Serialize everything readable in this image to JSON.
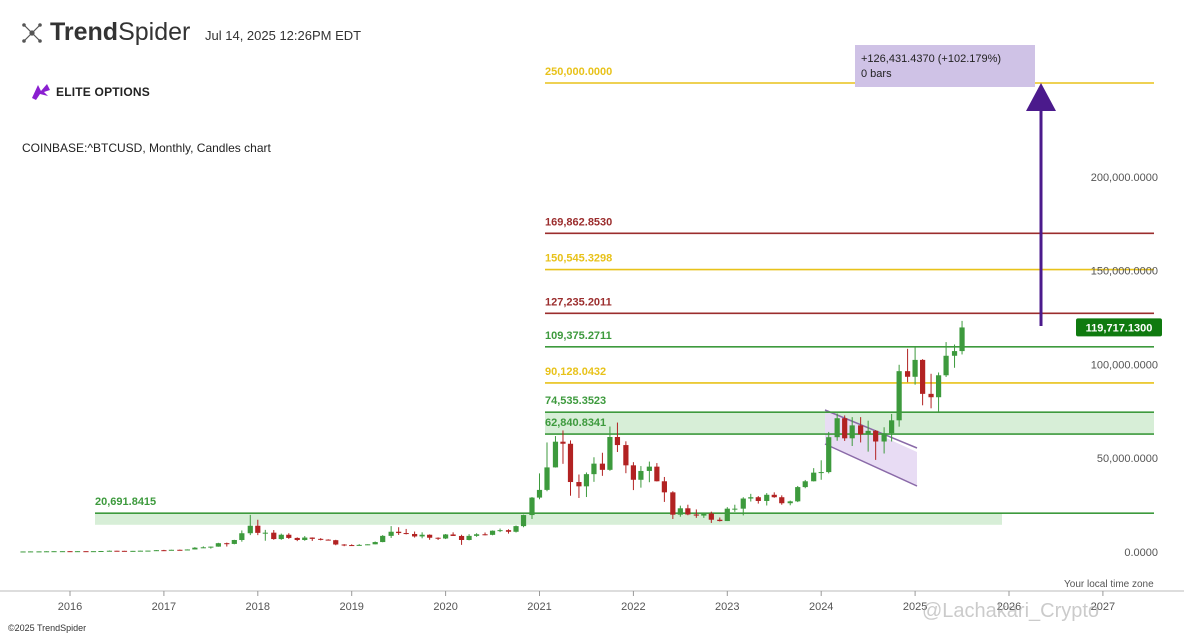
{
  "header": {
    "brand_bold": "Trend",
    "brand_light": "Spider",
    "brand_icon": "spider-dots-icon",
    "timestamp": "Jul 14, 2025 12:26PM EDT",
    "partner": "ELITE OPTIONS",
    "partner_icon": "phoenix-logo-icon",
    "symbol": "COINBASE:^BTCUSD, Monthly, Candles chart"
  },
  "footer": {
    "copyright": "©2025 TrendSpider",
    "timezone": "Your local time zone",
    "watermark": "@Lachakari_Crypto"
  },
  "colors": {
    "green": "#3d9a3d",
    "red": "#b22222",
    "gold": "#e8c21a",
    "darkred": "#9b2d2d",
    "zone": "#d7eed7",
    "arrow": "#4b1a8c",
    "measure_box": "#cfc2e6",
    "channel": "#e8dcf4",
    "price_badge": "#0f7a0f"
  },
  "chart_data": {
    "type": "candlestick",
    "ylim": [
      0,
      250000
    ],
    "y_ticks": [
      "200,000.0000",
      "150,000.0000",
      "100,000.0000",
      "50,000.0000",
      "0.0000"
    ],
    "y_tick_values": [
      200000,
      150000,
      100000,
      50000,
      0
    ],
    "x_ticks": [
      "2016",
      "2017",
      "2018",
      "2019",
      "2020",
      "2021",
      "2022",
      "2023",
      "2024",
      "2025",
      "2026",
      "2027"
    ],
    "levels": [
      {
        "value": 250000.0,
        "label": "250,000.0000",
        "color": "#e8c21a"
      },
      {
        "value": 169862.853,
        "label": "169,862.8530",
        "color": "#9b2d2d"
      },
      {
        "value": 150545.3298,
        "label": "150,545.3298",
        "color": "#e8c21a"
      },
      {
        "value": 127235.2011,
        "label": "127,235.2011",
        "color": "#9b2d2d"
      },
      {
        "value": 109375.2711,
        "label": "109,375.2711",
        "color": "#3d9a3d"
      },
      {
        "value": 90128.0432,
        "label": "90,128.0432",
        "color": "#e8c21a"
      },
      {
        "value": 74535.3523,
        "label": "74,535.3523",
        "color": "#3d9a3d"
      },
      {
        "value": 62840.8341,
        "label": "62,840.8341",
        "color": "#3d9a3d"
      },
      {
        "value": 20691.8415,
        "label": "20,691.8415",
        "color": "#3d9a3d"
      }
    ],
    "current_price": "119,717.1300",
    "current_value": 119717.13,
    "measurement": {
      "line1": "+126,431.4370 (+102.179%)",
      "line2": "0 bars"
    },
    "candles": [
      [
        2015.5,
        280,
        290,
        260,
        285
      ],
      [
        2015.58,
        285,
        330,
        280,
        320
      ],
      [
        2015.67,
        320,
        340,
        310,
        330
      ],
      [
        2015.75,
        330,
        420,
        320,
        380
      ],
      [
        2015.83,
        380,
        460,
        360,
        430
      ],
      [
        2015.92,
        430,
        470,
        420,
        440
      ],
      [
        2016.0,
        440,
        450,
        360,
        370
      ],
      [
        2016.08,
        370,
        450,
        360,
        440
      ],
      [
        2016.17,
        440,
        460,
        400,
        420
      ],
      [
        2016.25,
        420,
        460,
        410,
        450
      ],
      [
        2016.33,
        450,
        560,
        440,
        530
      ],
      [
        2016.42,
        530,
        780,
        520,
        670
      ],
      [
        2016.5,
        670,
        700,
        600,
        620
      ],
      [
        2016.58,
        620,
        630,
        550,
        580
      ],
      [
        2016.67,
        580,
        620,
        570,
        610
      ],
      [
        2016.75,
        610,
        740,
        600,
        700
      ],
      [
        2016.83,
        700,
        750,
        690,
        740
      ],
      [
        2016.92,
        740,
        980,
        740,
        970
      ],
      [
        2017.0,
        970,
        1150,
        750,
        960
      ],
      [
        2017.08,
        960,
        1200,
        940,
        1180
      ],
      [
        2017.17,
        1180,
        1300,
        900,
        1080
      ],
      [
        2017.25,
        1080,
        1400,
        1060,
        1350
      ],
      [
        2017.33,
        1350,
        2600,
        1340,
        2300
      ],
      [
        2017.42,
        2300,
        3000,
        2200,
        2500
      ],
      [
        2017.5,
        2500,
        2900,
        1800,
        2860
      ],
      [
        2017.58,
        2860,
        4900,
        2800,
        4700
      ],
      [
        2017.67,
        4700,
        5000,
        2900,
        4300
      ],
      [
        2017.75,
        4300,
        6500,
        4100,
        6400
      ],
      [
        2017.83,
        6400,
        11500,
        5500,
        10000
      ],
      [
        2017.92,
        10000,
        19800,
        9000,
        14000
      ],
      [
        2018.0,
        14000,
        17200,
        9000,
        10200
      ],
      [
        2018.08,
        10200,
        11800,
        6000,
        10300
      ],
      [
        2018.17,
        10300,
        11700,
        6500,
        6900
      ],
      [
        2018.25,
        6900,
        9800,
        6500,
        9200
      ],
      [
        2018.33,
        9200,
        10000,
        7000,
        7500
      ],
      [
        2018.42,
        7500,
        7800,
        5800,
        6400
      ],
      [
        2018.5,
        6400,
        8500,
        6000,
        7700
      ],
      [
        2018.58,
        7700,
        7800,
        5900,
        7000
      ],
      [
        2018.67,
        7000,
        7400,
        6200,
        6600
      ],
      [
        2018.75,
        6600,
        6800,
        6200,
        6300
      ],
      [
        2018.83,
        6300,
        6500,
        3600,
        4000
      ],
      [
        2018.92,
        4000,
        4200,
        3100,
        3700
      ],
      [
        2019.0,
        3700,
        4100,
        3400,
        3450
      ],
      [
        2019.08,
        3450,
        4200,
        3400,
        3800
      ],
      [
        2019.17,
        3800,
        4100,
        3700,
        4100
      ],
      [
        2019.25,
        4100,
        5600,
        4100,
        5300
      ],
      [
        2019.33,
        5300,
        9000,
        5200,
        8600
      ],
      [
        2019.42,
        8600,
        13800,
        7500,
        10800
      ],
      [
        2019.5,
        10800,
        13200,
        9100,
        10100
      ],
      [
        2019.58,
        10100,
        12300,
        9400,
        9600
      ],
      [
        2019.67,
        9600,
        10900,
        7700,
        8300
      ],
      [
        2019.75,
        8300,
        10500,
        7300,
        9200
      ],
      [
        2019.83,
        9200,
        9400,
        6500,
        7600
      ],
      [
        2019.92,
        7600,
        7800,
        6400,
        7200
      ],
      [
        2020.0,
        7200,
        9600,
        6900,
        9350
      ],
      [
        2020.08,
        9350,
        10500,
        8600,
        8550
      ],
      [
        2020.17,
        8550,
        9200,
        3800,
        6400
      ],
      [
        2020.25,
        6400,
        9500,
        6200,
        8600
      ],
      [
        2020.33,
        8600,
        10000,
        8100,
        9450
      ],
      [
        2020.42,
        9450,
        10400,
        8900,
        9140
      ],
      [
        2020.5,
        9140,
        11500,
        8900,
        11350
      ],
      [
        2020.58,
        11350,
        12500,
        10600,
        11650
      ],
      [
        2020.67,
        11650,
        12100,
        9800,
        10780
      ],
      [
        2020.75,
        10780,
        14100,
        10400,
        13800
      ],
      [
        2020.83,
        13800,
        19900,
        13200,
        19700
      ],
      [
        2020.92,
        19700,
        29300,
        17600,
        29000
      ],
      [
        2021.0,
        29000,
        41900,
        28100,
        33100
      ],
      [
        2021.08,
        33100,
        58400,
        32400,
        45100
      ],
      [
        2021.17,
        45100,
        61800,
        45000,
        58800
      ],
      [
        2021.25,
        58800,
        64800,
        47000,
        57700
      ],
      [
        2021.33,
        57700,
        59500,
        30000,
        37300
      ],
      [
        2021.42,
        37300,
        41300,
        28800,
        35000
      ],
      [
        2021.5,
        35000,
        42400,
        29300,
        41500
      ],
      [
        2021.58,
        41500,
        50500,
        37400,
        47100
      ],
      [
        2021.67,
        47100,
        52900,
        40600,
        43800
      ],
      [
        2021.75,
        43800,
        66900,
        43300,
        61300
      ],
      [
        2021.83,
        61300,
        69000,
        53300,
        57000
      ],
      [
        2021.92,
        57000,
        59000,
        42000,
        46200
      ],
      [
        2022.0,
        46200,
        47900,
        33000,
        38500
      ],
      [
        2022.08,
        38500,
        45800,
        34300,
        43200
      ],
      [
        2022.17,
        43200,
        48200,
        37200,
        45500
      ],
      [
        2022.25,
        45500,
        47400,
        37600,
        37700
      ],
      [
        2022.33,
        37700,
        40000,
        26700,
        31800
      ],
      [
        2022.42,
        31800,
        32400,
        17600,
        19900
      ],
      [
        2022.5,
        19900,
        24700,
        18800,
        23300
      ],
      [
        2022.58,
        23300,
        25200,
        19600,
        20000
      ],
      [
        2022.67,
        20000,
        22700,
        18200,
        19400
      ],
      [
        2022.75,
        19400,
        20900,
        18200,
        20500
      ],
      [
        2022.83,
        20500,
        21500,
        15500,
        17200
      ],
      [
        2022.92,
        17200,
        18400,
        16300,
        16500
      ],
      [
        2023.0,
        16500,
        23900,
        16500,
        23100
      ],
      [
        2023.08,
        23100,
        25200,
        21400,
        23100
      ],
      [
        2023.17,
        23100,
        29200,
        19500,
        28500
      ],
      [
        2023.25,
        28500,
        31000,
        26900,
        29200
      ],
      [
        2023.33,
        29200,
        29800,
        25800,
        27200
      ],
      [
        2023.42,
        27200,
        31400,
        24800,
        30500
      ],
      [
        2023.5,
        30500,
        31800,
        28900,
        29200
      ],
      [
        2023.58,
        29200,
        30200,
        25200,
        26000
      ],
      [
        2023.67,
        26000,
        27400,
        24900,
        27000
      ],
      [
        2023.75,
        27000,
        35200,
        26600,
        34600
      ],
      [
        2023.83,
        34600,
        38400,
        34000,
        37700
      ],
      [
        2023.92,
        37700,
        44700,
        37600,
        42300
      ],
      [
        2024.0,
        42300,
        48900,
        38500,
        42600
      ],
      [
        2024.08,
        42600,
        64000,
        41900,
        61200
      ],
      [
        2024.17,
        61200,
        73800,
        59300,
        71300
      ],
      [
        2024.25,
        71300,
        72800,
        59200,
        60600
      ],
      [
        2024.33,
        60600,
        71900,
        56500,
        67500
      ],
      [
        2024.42,
        67500,
        71900,
        58400,
        62700
      ],
      [
        2024.5,
        62700,
        70000,
        53500,
        64600
      ],
      [
        2024.58,
        64600,
        65000,
        49100,
        58900
      ],
      [
        2024.67,
        58900,
        66500,
        52500,
        63300
      ],
      [
        2024.75,
        63300,
        73600,
        58900,
        70200
      ],
      [
        2024.83,
        70200,
        99800,
        66800,
        96400
      ],
      [
        2024.92,
        96400,
        108300,
        90500,
        93400
      ],
      [
        2025.0,
        93400,
        109300,
        89200,
        102400
      ],
      [
        2025.08,
        102400,
        102800,
        78200,
        84300
      ],
      [
        2025.17,
        84300,
        95000,
        76600,
        82500
      ],
      [
        2025.25,
        82500,
        95700,
        74500,
        94200
      ],
      [
        2025.33,
        94200,
        111900,
        93300,
        104600
      ],
      [
        2025.42,
        104600,
        110600,
        98200,
        107100
      ],
      [
        2025.5,
        107100,
        123200,
        105300,
        119700
      ]
    ]
  }
}
